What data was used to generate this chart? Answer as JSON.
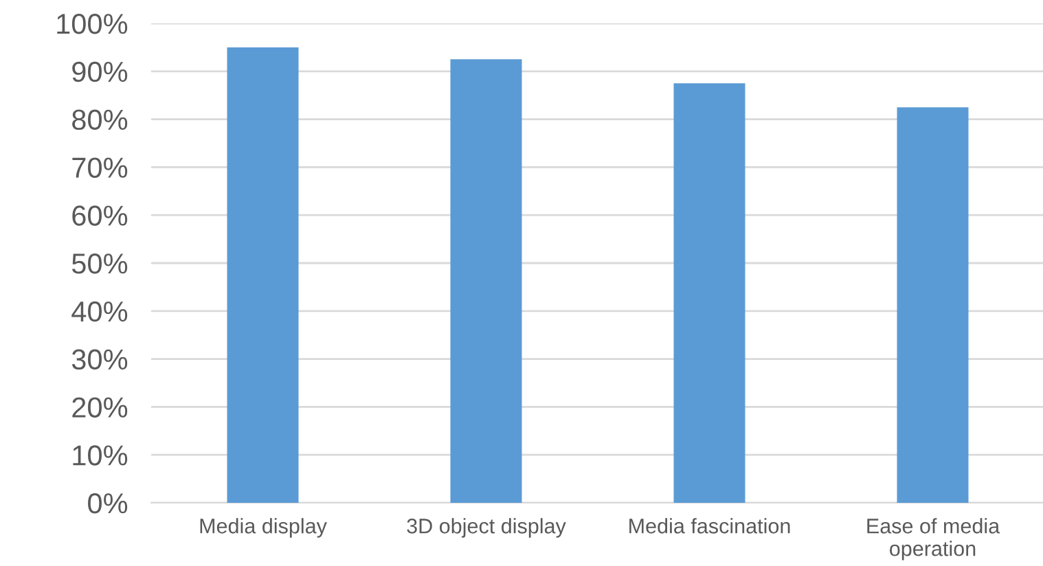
{
  "chart_data": {
    "type": "bar",
    "categories": [
      "Media display",
      "3D object display",
      "Media fascination",
      "Ease of media\noperation"
    ],
    "values": [
      95,
      92.5,
      87.5,
      82.5
    ],
    "color": "#5b9bd5",
    "ylim": [
      0,
      100
    ],
    "yticks": [
      {
        "value": 0,
        "label": "0%"
      },
      {
        "value": 10,
        "label": "10%"
      },
      {
        "value": 20,
        "label": "20%"
      },
      {
        "value": 30,
        "label": "30%"
      },
      {
        "value": 40,
        "label": "40%"
      },
      {
        "value": 50,
        "label": "50%"
      },
      {
        "value": 60,
        "label": "60%"
      },
      {
        "value": 70,
        "label": "70%"
      },
      {
        "value": 80,
        "label": "80%"
      },
      {
        "value": 90,
        "label": "90%"
      },
      {
        "value": 100,
        "label": "100%"
      }
    ],
    "grid": "y"
  }
}
